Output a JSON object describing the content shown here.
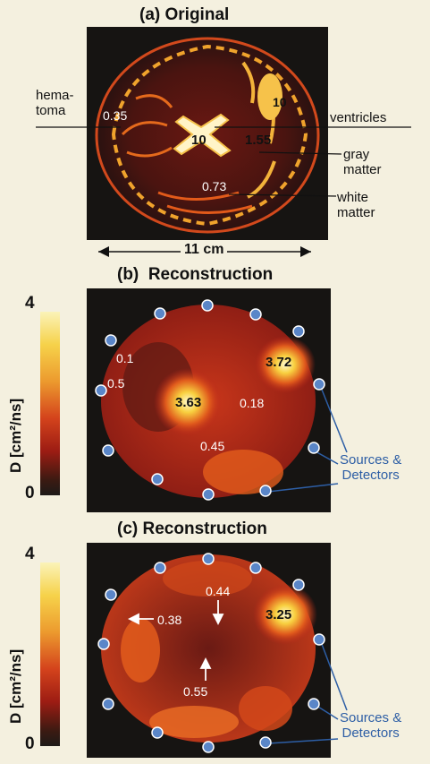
{
  "panel_a": {
    "title": "(a) Original",
    "labels": {
      "hematoma_1": "hema-",
      "hematoma_2": "toma",
      "ventricles": "ventricles",
      "gray_1": "gray",
      "gray_2": "matter",
      "white_1": "white",
      "white_2": "matter"
    },
    "values": {
      "hematoma": "0.35",
      "ventricle_top": "10",
      "ventricle_center": "10",
      "gray": "1.55",
      "white": "0.73"
    },
    "scale": "11 cm"
  },
  "panel_b": {
    "title_prefix": "(b)",
    "title": "Reconstruction",
    "values": {
      "v1": "0.1",
      "v2": "0.5",
      "peak_left": "3.63",
      "peak_right": "3.72",
      "v3": "0.18",
      "v4": "0.45"
    },
    "colorbar": {
      "max": "4",
      "min": "0",
      "label": "D [cm²/ns]"
    },
    "annotation_1": "Sources &",
    "annotation_2": "Detectors"
  },
  "panel_c": {
    "title": "(c) Reconstruction",
    "values": {
      "v1": "0.44",
      "v2": "0.38",
      "peak": "3.25",
      "v3": "0.55"
    },
    "colorbar": {
      "max": "4",
      "min": "0",
      "label": "D [cm²/ns]"
    },
    "annotation_1": "Sources &",
    "annotation_2": "Detectors"
  },
  "colors": {
    "probe": "#5a86c8",
    "annotation": "#2d5ea5",
    "background": "#f4f0df"
  }
}
